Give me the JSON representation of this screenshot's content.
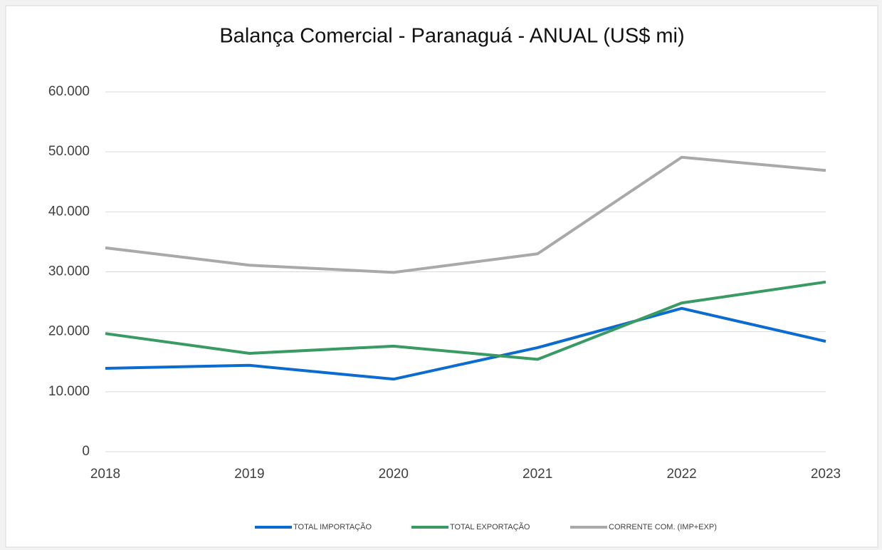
{
  "chart_data": {
    "type": "line",
    "title": "Balança Comercial - Paranaguá - ANUAL (US$ mi)",
    "x": [
      2018,
      2019,
      2020,
      2021,
      2022,
      2023
    ],
    "xlim": [
      2018,
      2023
    ],
    "xticks": [
      2018,
      2019,
      2020,
      2021,
      2022,
      2023
    ],
    "ylim": [
      0,
      60000
    ],
    "yticks": [
      0,
      {
        "value": 10000,
        "label": "10.000"
      },
      {
        "value": 20000,
        "label": "20.000"
      },
      {
        "value": 30000,
        "label": "30.000"
      },
      {
        "value": 40000,
        "label": "40.000"
      },
      {
        "value": 50000,
        "label": "50.000"
      },
      {
        "value": 60000,
        "label": "60.000"
      }
    ],
    "grid": true,
    "legend": "bottom",
    "series": [
      {
        "name": "TOTAL IMPORTAÇÃO",
        "color": "#0b6bd0",
        "values": [
          13900,
          14400,
          12100,
          17350,
          23900,
          18400
        ]
      },
      {
        "name": "TOTAL EXPORTAÇÃO",
        "color": "#3a9a64",
        "values": [
          19700,
          16400,
          17600,
          15400,
          24800,
          28300
        ]
      },
      {
        "name": "CORRENTE COM. (IMP+EXP)",
        "color": "#a9a9a9",
        "values": [
          34000,
          31100,
          29900,
          33000,
          49100,
          46900
        ]
      }
    ]
  }
}
